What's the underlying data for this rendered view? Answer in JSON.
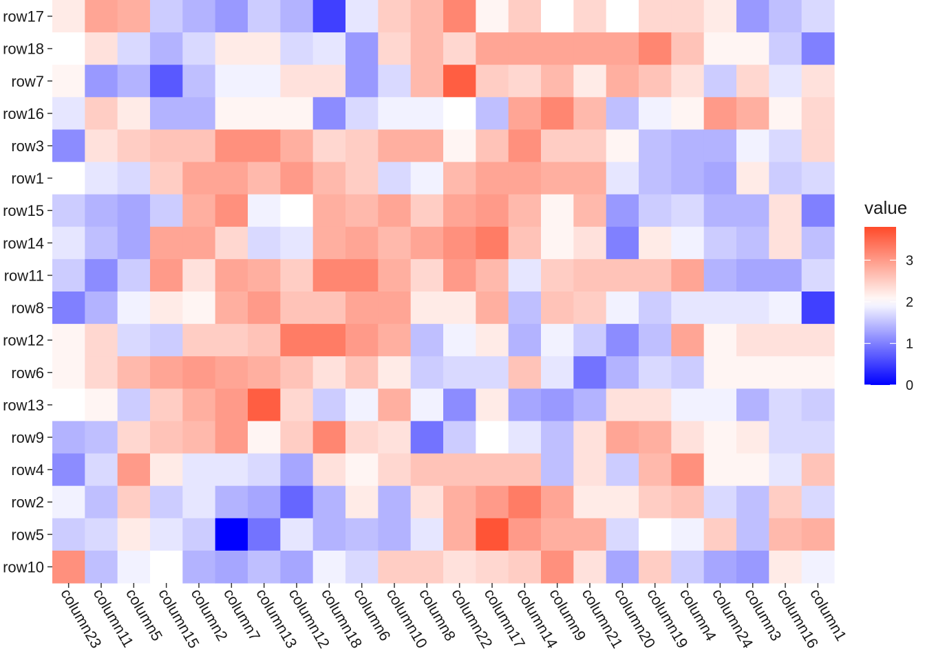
{
  "chart_data": {
    "type": "heatmap",
    "rows": [
      "row17",
      "row18",
      "row7",
      "row16",
      "row3",
      "row1",
      "row15",
      "row14",
      "row11",
      "row8",
      "row12",
      "row6",
      "row13",
      "row9",
      "row4",
      "row2",
      "row5",
      "row10"
    ],
    "columns": [
      "column23",
      "column11",
      "column5",
      "column15",
      "column2",
      "column7",
      "column13",
      "column12",
      "column18",
      "column6",
      "column10",
      "column8",
      "column22",
      "column17",
      "column14",
      "column9",
      "column21",
      "column20",
      "column19",
      "column4",
      "column24",
      "column3",
      "column16",
      "column1"
    ],
    "values": [
      [
        2.2,
        2.9,
        2.8,
        1.6,
        1.4,
        1.2,
        1.6,
        1.4,
        0.5,
        1.8,
        2.5,
        2.7,
        3.2,
        2.1,
        2.5,
        2.0,
        2.4,
        2.0,
        2.4,
        2.4,
        2.2,
        1.2,
        1.5,
        1.7
      ],
      [
        2.0,
        2.3,
        1.7,
        1.4,
        1.7,
        2.2,
        2.2,
        1.7,
        1.8,
        1.2,
        2.4,
        2.7,
        2.4,
        2.9,
        2.9,
        2.9,
        2.9,
        2.9,
        3.2,
        2.6,
        2.1,
        2.1,
        1.6,
        1.0
      ],
      [
        2.1,
        1.2,
        1.4,
        0.7,
        1.5,
        1.9,
        1.9,
        2.3,
        2.3,
        1.2,
        1.7,
        2.7,
        3.6,
        2.5,
        2.4,
        2.7,
        2.2,
        2.8,
        2.6,
        2.3,
        1.6,
        2.4,
        1.8,
        2.3
      ],
      [
        1.8,
        2.5,
        2.2,
        1.4,
        1.4,
        2.1,
        2.1,
        2.1,
        1.1,
        1.7,
        1.9,
        1.9,
        2.0,
        1.5,
        2.9,
        3.2,
        2.7,
        1.5,
        1.9,
        2.1,
        3.0,
        2.8,
        2.1,
        2.4
      ],
      [
        1.1,
        2.3,
        2.5,
        2.6,
        2.6,
        3.1,
        3.1,
        2.8,
        2.4,
        2.5,
        2.8,
        2.8,
        2.1,
        2.6,
        3.1,
        2.5,
        2.5,
        2.1,
        1.5,
        1.4,
        1.4,
        1.9,
        1.7,
        2.4
      ],
      [
        2.0,
        1.8,
        1.7,
        2.5,
        2.9,
        2.9,
        2.7,
        3.0,
        2.7,
        2.5,
        1.7,
        1.9,
        2.7,
        2.9,
        2.9,
        2.8,
        2.8,
        1.8,
        1.5,
        1.4,
        1.3,
        2.2,
        1.6,
        1.7
      ],
      [
        1.6,
        1.4,
        1.3,
        1.6,
        2.8,
        3.1,
        1.9,
        2.0,
        2.8,
        2.7,
        2.9,
        2.5,
        2.9,
        3.0,
        2.7,
        2.1,
        2.7,
        1.2,
        1.6,
        1.7,
        1.4,
        1.4,
        2.3,
        1.0
      ],
      [
        1.8,
        1.5,
        1.3,
        2.9,
        2.9,
        2.4,
        1.7,
        1.8,
        2.8,
        2.9,
        2.7,
        2.9,
        3.1,
        3.3,
        2.6,
        2.1,
        2.3,
        1.0,
        2.2,
        1.9,
        1.6,
        1.5,
        2.3,
        1.5
      ],
      [
        1.6,
        1.1,
        1.6,
        3.0,
        2.3,
        2.9,
        2.8,
        2.5,
        3.2,
        3.2,
        2.8,
        2.4,
        3.0,
        2.7,
        1.8,
        2.5,
        2.6,
        2.6,
        2.6,
        2.9,
        1.4,
        1.3,
        1.3,
        1.7
      ],
      [
        1.0,
        1.4,
        1.9,
        2.2,
        2.1,
        2.8,
        3.0,
        2.6,
        2.6,
        2.9,
        2.9,
        2.2,
        2.2,
        2.8,
        1.5,
        2.6,
        2.5,
        1.9,
        1.6,
        1.8,
        1.8,
        1.8,
        1.9,
        0.5
      ],
      [
        2.1,
        2.4,
        1.7,
        1.6,
        2.5,
        2.5,
        2.6,
        3.3,
        3.3,
        3.0,
        2.8,
        1.5,
        1.9,
        2.2,
        1.4,
        1.9,
        1.6,
        1.1,
        1.5,
        2.9,
        2.1,
        2.3,
        2.3,
        2.3
      ],
      [
        2.1,
        2.4,
        2.7,
        2.9,
        3.0,
        2.9,
        2.8,
        2.6,
        2.3,
        2.6,
        2.2,
        1.6,
        1.7,
        1.7,
        2.6,
        1.8,
        0.9,
        1.4,
        1.7,
        1.6,
        2.1,
        2.1,
        2.1,
        2.1
      ],
      [
        2.0,
        2.1,
        1.6,
        2.5,
        2.8,
        3.0,
        3.6,
        2.4,
        1.6,
        1.9,
        2.8,
        1.9,
        1.1,
        2.2,
        1.3,
        1.2,
        1.4,
        2.3,
        2.3,
        1.9,
        1.9,
        1.4,
        1.7,
        1.6
      ],
      [
        1.4,
        1.5,
        2.4,
        2.6,
        2.7,
        3.0,
        2.1,
        2.5,
        3.2,
        2.4,
        2.3,
        0.9,
        1.6,
        2.0,
        1.8,
        1.5,
        2.3,
        2.9,
        2.8,
        2.3,
        2.1,
        2.2,
        1.7,
        1.7
      ],
      [
        1.1,
        1.7,
        3.0,
        2.2,
        1.8,
        1.8,
        1.7,
        1.3,
        2.3,
        2.1,
        2.4,
        2.6,
        2.6,
        2.6,
        2.6,
        1.5,
        2.3,
        1.6,
        2.7,
        3.1,
        2.1,
        2.1,
        1.8,
        2.6
      ],
      [
        1.9,
        1.5,
        2.5,
        1.6,
        1.8,
        1.4,
        1.3,
        0.8,
        1.4,
        2.2,
        1.4,
        2.3,
        2.8,
        3.0,
        3.3,
        2.9,
        2.2,
        2.2,
        2.5,
        2.6,
        1.7,
        1.5,
        2.5,
        1.7
      ],
      [
        1.6,
        1.7,
        2.2,
        1.8,
        1.6,
        0.0,
        0.9,
        1.8,
        1.4,
        1.5,
        1.4,
        1.8,
        2.8,
        3.7,
        3.0,
        2.8,
        2.8,
        1.7,
        2.0,
        1.9,
        2.5,
        1.5,
        2.7,
        2.8
      ],
      [
        3.1,
        1.5,
        1.9,
        2.0,
        1.4,
        1.3,
        1.5,
        1.3,
        1.9,
        1.7,
        2.5,
        2.5,
        2.3,
        2.4,
        2.5,
        3.1,
        2.3,
        1.3,
        2.5,
        1.6,
        1.3,
        1.2,
        2.2,
        1.9
      ]
    ],
    "legend": {
      "title": "value",
      "ticks": [
        0,
        1,
        2,
        3
      ],
      "range": [
        0,
        3.8
      ],
      "midpoint": 2
    },
    "colors": {
      "low": "#0000ff",
      "mid": "#ffffff",
      "high": "#ff4a2a"
    },
    "xlabel": "",
    "ylabel": ""
  }
}
